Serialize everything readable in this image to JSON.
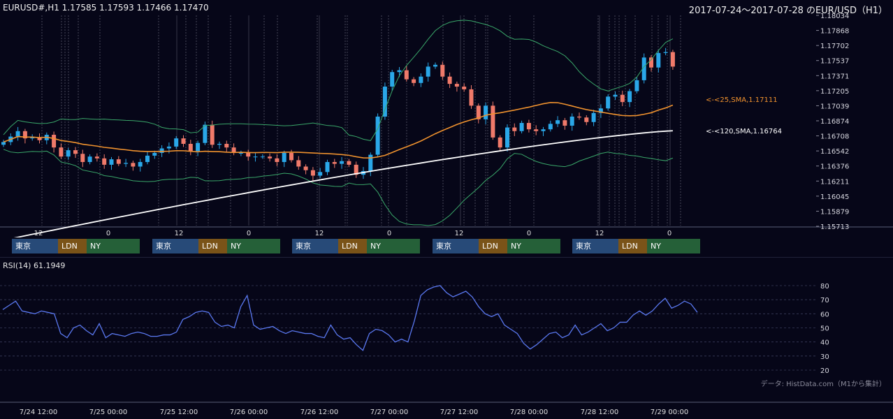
{
  "header": {
    "symbol_info": "EURUSD#,H1 1.17585 1.17593 1.17466 1.17470",
    "range_title": "2017-07-24～2017-07-28 のEUR/USD（H1）"
  },
  "rsi_panel": {
    "label": "RSI(14) 61.1949"
  },
  "credit": "データ: HistData.com（M1から集計）",
  "sessions": [
    {
      "tokyo": "東京",
      "london": "LDN",
      "ny": "NY"
    },
    {
      "tokyo": "東京",
      "london": "LDN",
      "ny": "NY"
    },
    {
      "tokyo": "東京",
      "london": "LDN",
      "ny": "NY"
    },
    {
      "tokyo": "東京",
      "london": "LDN",
      "ny": "NY"
    },
    {
      "tokyo": "東京",
      "london": "LDN",
      "ny": "NY"
    }
  ],
  "colors": {
    "background": "#060618",
    "bull": "#2aa7e8",
    "bear": "#f07a6a",
    "sma25": "#f0922e",
    "sma120": "#ffffff",
    "bollinger": "#3aa86a",
    "rsi": "#5a78f0",
    "grid": "#3a3d5a"
  },
  "chart_data": [
    {
      "type": "candlestick",
      "title": "EURUSD#,H1 1.17585 1.17593 1.17466 1.17470",
      "y_ticks": [
        "1.18034",
        "1.17868",
        "1.17702",
        "1.17537",
        "1.17371",
        "1.17205",
        "1.17039",
        "1.16874",
        "1.16708",
        "1.16542",
        "1.16376",
        "1.16211",
        "1.16045",
        "1.15879",
        "1.15713"
      ],
      "ylim": [
        1.15713,
        1.18034
      ],
      "hour_ticks": [
        "12",
        "0",
        "12",
        "0",
        "12",
        "0",
        "12",
        "0",
        "12",
        "0"
      ],
      "x_date_labels": [
        "7/24 12:00",
        "7/25 00:00",
        "7/25 12:00",
        "7/26 00:00",
        "7/26 12:00",
        "7/27 00:00",
        "7/27 12:00",
        "7/28 00:00",
        "7/28 12:00",
        "7/29 00:00"
      ],
      "close": [
        1.1664,
        1.167,
        1.1676,
        1.1668,
        1.1669,
        1.1666,
        1.1672,
        1.1658,
        1.1648,
        1.1655,
        1.1651,
        1.1642,
        1.1648,
        1.1646,
        1.1639,
        1.1645,
        1.164,
        1.1641,
        1.1637,
        1.1642,
        1.1649,
        1.1652,
        1.1657,
        1.1659,
        1.1668,
        1.1662,
        1.1654,
        1.1663,
        1.1683,
        1.1661,
        1.1662,
        1.1658,
        1.1652,
        1.1652,
        1.1648,
        1.1648,
        1.1648,
        1.1646,
        1.1642,
        1.1652,
        1.1644,
        1.1637,
        1.1633,
        1.1627,
        1.1631,
        1.1642,
        1.164,
        1.1643,
        1.1639,
        1.1628,
        1.1632,
        1.165,
        1.1692,
        1.1725,
        1.1741,
        1.1743,
        1.1733,
        1.1729,
        1.1736,
        1.1747,
        1.1749,
        1.1736,
        1.1728,
        1.1725,
        1.1722,
        1.1704,
        1.1689,
        1.1704,
        1.1669,
        1.1658,
        1.168,
        1.1676,
        1.1685,
        1.1678,
        1.1676,
        1.1678,
        1.1684,
        1.1688,
        1.1682,
        1.1692,
        1.1691,
        1.1686,
        1.1696,
        1.1701,
        1.1714,
        1.1716,
        1.1708,
        1.172,
        1.1732,
        1.1757,
        1.1746,
        1.1762,
        1.1763,
        1.1747
      ],
      "sma": [
        {
          "name": "SMA,1.17111",
          "period": 25,
          "label": "<-<25,SMA,1.17111",
          "last": 1.17111
        },
        {
          "name": "SMA,1.16764",
          "period": 120,
          "label": "<-<120,SMA,1.16764",
          "last": 1.16764
        }
      ],
      "bollinger": {
        "period": 20,
        "deviation": 2
      },
      "session_markers": true
    },
    {
      "type": "line",
      "title": "RSI(14) 61.1949",
      "y_ticks": [
        "80",
        "70",
        "60",
        "50",
        "40",
        "30",
        "20"
      ],
      "ylim": [
        20,
        80
      ],
      "values": [
        63,
        66,
        69,
        62,
        61,
        60,
        62,
        61,
        60,
        46,
        43,
        50,
        52,
        48,
        45,
        53,
        43,
        46,
        45,
        44,
        46,
        47,
        46,
        44,
        44,
        45,
        45,
        47,
        56,
        58,
        61,
        62,
        61,
        54,
        51,
        52,
        50,
        65,
        73,
        52,
        49,
        50,
        51,
        48,
        46,
        48,
        47,
        46,
        46,
        44,
        43,
        52,
        45,
        42,
        43,
        38,
        34,
        46,
        49,
        48,
        45,
        40,
        42,
        40,
        55,
        73,
        77,
        79,
        80,
        75,
        72,
        74,
        76,
        72,
        65,
        60,
        58,
        60,
        52,
        49,
        46,
        39,
        35,
        38,
        42,
        46,
        47,
        43,
        45,
        52,
        45,
        47,
        50,
        53,
        48,
        50,
        54,
        54,
        59,
        62,
        59,
        62,
        67,
        71,
        64,
        66,
        69,
        67,
        61
      ]
    }
  ]
}
